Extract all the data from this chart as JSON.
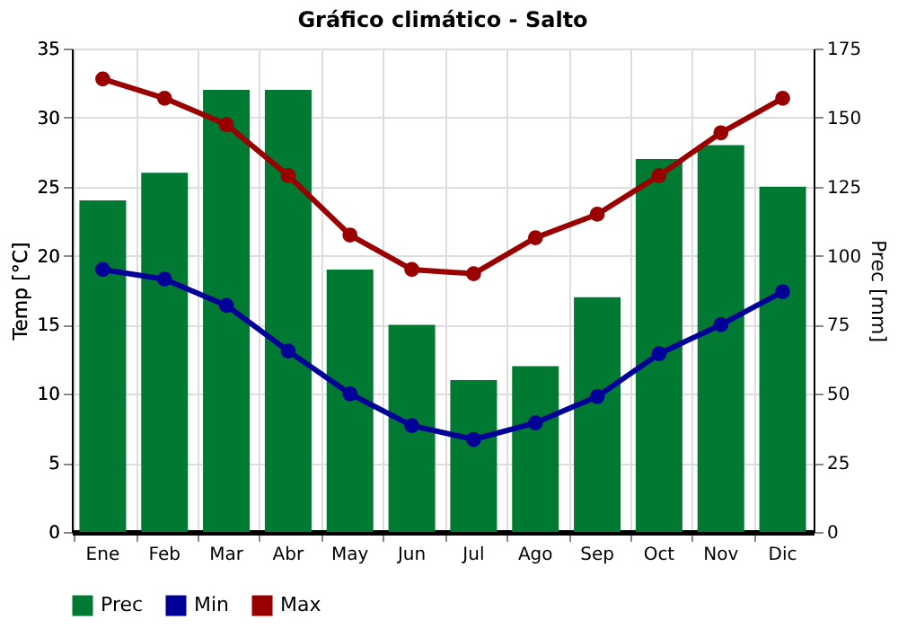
{
  "chart_data": {
    "type": "bar",
    "title": "Gráfico climático - Salto",
    "ylabel": "Temp [°C]",
    "y2label": "Prec [mm]",
    "categories": [
      "Ene",
      "Feb",
      "Mar",
      "Abr",
      "May",
      "Jun",
      "Jul",
      "Ago",
      "Sep",
      "Oct",
      "Nov",
      "Dic"
    ],
    "series": [
      {
        "name": "Prec",
        "axis": "y2",
        "color": "#007a33",
        "values": [
          120,
          130,
          160,
          160,
          95,
          75,
          55,
          60,
          85,
          135,
          140,
          125
        ]
      },
      {
        "name": "Min",
        "type": "line",
        "color": "#000099",
        "marker": "circle",
        "values": [
          19.0,
          18.3,
          16.4,
          13.1,
          10.0,
          7.7,
          6.7,
          7.9,
          9.8,
          12.9,
          15.0,
          17.4
        ]
      },
      {
        "name": "Max",
        "type": "line",
        "color": "#990000",
        "marker": "circle",
        "values": [
          32.8,
          31.4,
          29.5,
          25.8,
          21.5,
          19.0,
          18.7,
          21.3,
          23.0,
          25.8,
          28.9,
          31.4
        ]
      }
    ],
    "ylim": [
      0,
      35
    ],
    "yticks": [
      0,
      5,
      10,
      15,
      20,
      25,
      30,
      35
    ],
    "y2lim": [
      0,
      175
    ],
    "y2ticks": [
      0,
      25,
      50,
      75,
      100,
      125,
      150,
      175
    ],
    "grid": true,
    "legend": "bottom left"
  }
}
